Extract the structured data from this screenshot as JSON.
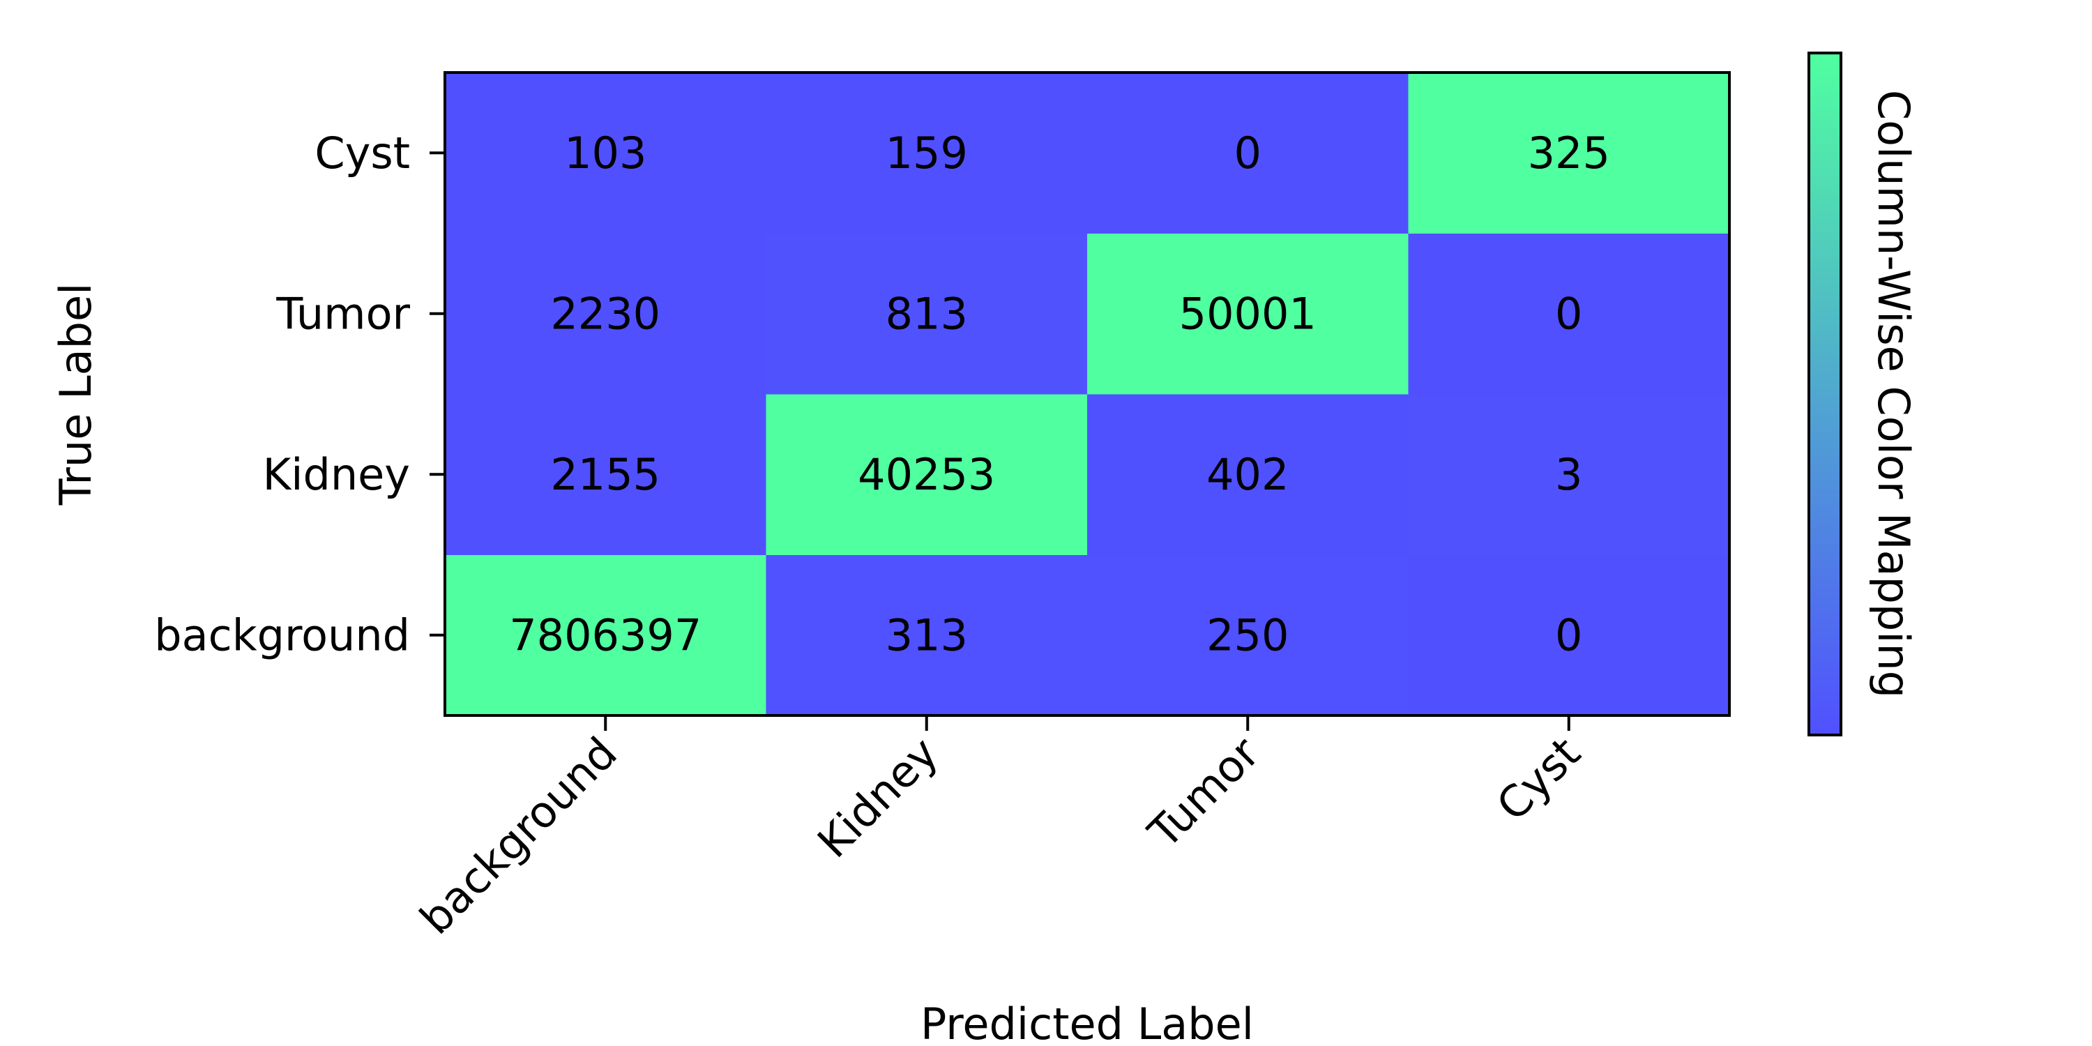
{
  "chart_data": {
    "type": "heatmap",
    "title": "",
    "xlabel": "Predicted Label",
    "ylabel": "True Label",
    "x_categories": [
      "background",
      "Kidney",
      "Tumor",
      "Cyst"
    ],
    "y_categories": [
      "background",
      "Kidney",
      "Tumor",
      "Cyst"
    ],
    "matrix": [
      [
        7806397,
        313,
        250,
        0
      ],
      [
        2155,
        40253,
        402,
        3
      ],
      [
        2230,
        813,
        50001,
        0
      ],
      [
        103,
        159,
        0,
        325
      ]
    ],
    "y_order": "bottom-to-top",
    "colorbar_label": "Column-Wise Color Mapping",
    "color_low": "#5050ff",
    "color_high": "#50ffa0",
    "normalization": "column-wise",
    "grid": false
  }
}
